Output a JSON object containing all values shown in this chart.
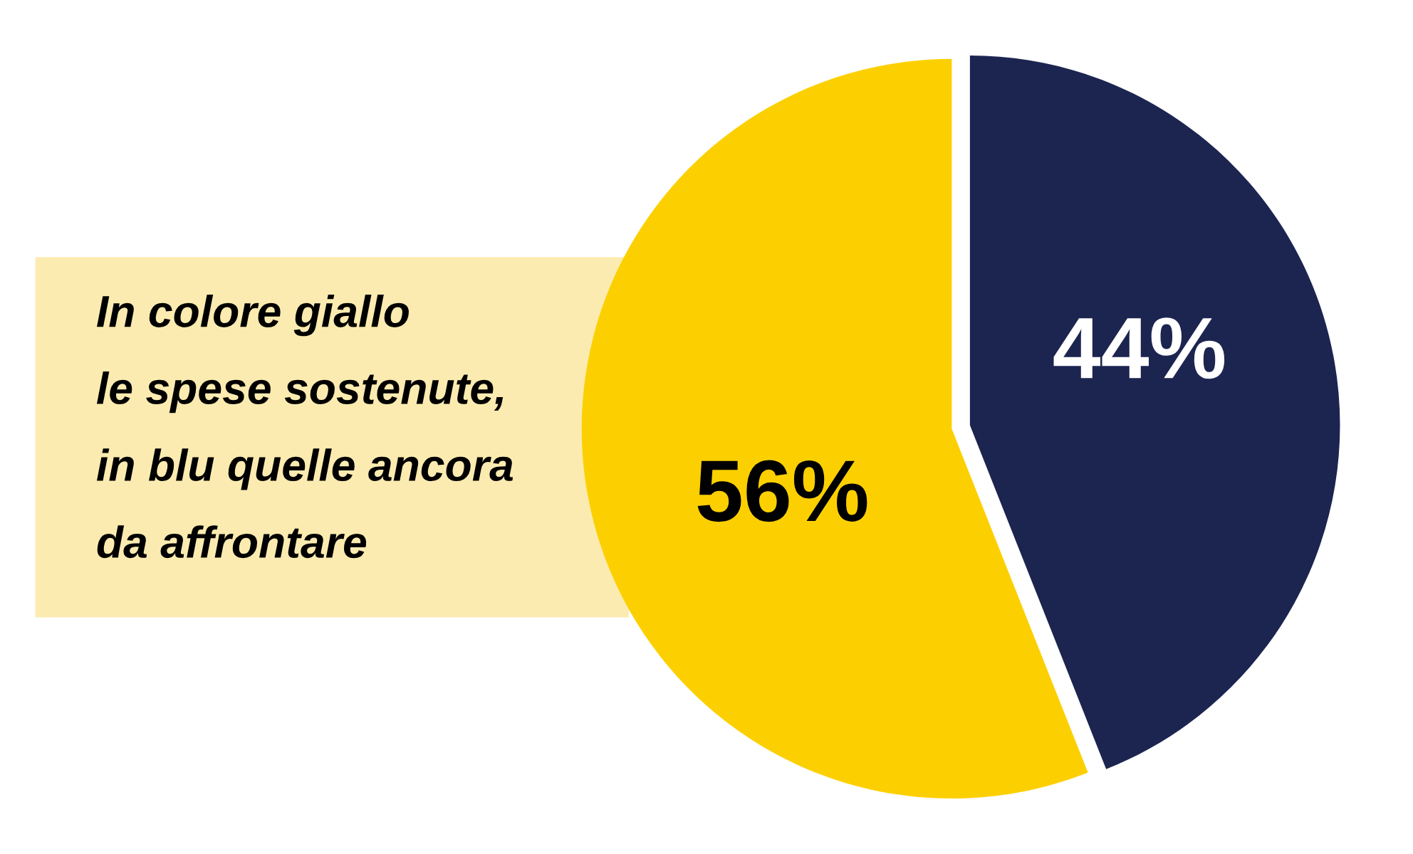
{
  "chart_data": {
    "type": "pie",
    "categories": [
      null,
      null
    ],
    "values": [
      44,
      56
    ],
    "colors": [
      "#1c2550",
      "#fcd000"
    ],
    "value_labels": [
      "44%",
      "56%"
    ],
    "annotations": [
      "In colore giallo\nle spese sostenute,\nin blu quelle ancora\nda affrontare"
    ]
  }
}
